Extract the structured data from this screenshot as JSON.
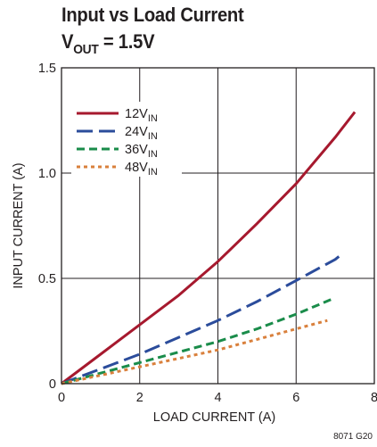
{
  "chart_data": {
    "type": "line",
    "title": {
      "main": "Input vs Load Current",
      "line2_prefix": "V",
      "line2_sub": "OUT",
      "line2_suffix": " = 1.5V"
    },
    "xlabel": "LOAD CURRENT (A)",
    "ylabel": "INPUT CURRENT (A)",
    "xlim": [
      0,
      8
    ],
    "ylim": [
      0,
      1.5
    ],
    "x_ticks": [
      "0",
      "2",
      "4",
      "6",
      "8"
    ],
    "y_ticks": [
      "0",
      "0.5",
      "1.0",
      "1.5"
    ],
    "grid": true,
    "legend_position": "top-left",
    "series": [
      {
        "name_main": "12V",
        "name_sub": "IN",
        "color": "#a6192e",
        "style": "solid",
        "x": [
          0,
          1,
          2,
          3,
          4,
          5,
          6,
          7,
          7.5
        ],
        "y": [
          0,
          0.14,
          0.28,
          0.42,
          0.58,
          0.76,
          0.95,
          1.17,
          1.29
        ]
      },
      {
        "name_main": "24V",
        "name_sub": "IN",
        "color": "#2b4c9b",
        "style": "long-dash",
        "x": [
          0,
          1,
          2,
          3,
          4,
          5,
          6,
          7,
          7.2
        ],
        "y": [
          0,
          0.07,
          0.14,
          0.22,
          0.3,
          0.39,
          0.49,
          0.59,
          0.62
        ]
      },
      {
        "name_main": "36V",
        "name_sub": "IN",
        "color": "#1a8c4a",
        "style": "dash",
        "x": [
          0,
          1,
          2,
          3,
          4,
          5,
          6,
          6.9
        ],
        "y": [
          0,
          0.05,
          0.1,
          0.15,
          0.2,
          0.26,
          0.33,
          0.4
        ]
      },
      {
        "name_main": "48V",
        "name_sub": "IN",
        "color": "#d9803c",
        "style": "dot",
        "x": [
          0,
          1,
          2,
          3,
          4,
          5,
          6,
          6.8
        ],
        "y": [
          0,
          0.04,
          0.08,
          0.12,
          0.16,
          0.21,
          0.26,
          0.3
        ]
      }
    ]
  },
  "figure_code": "8071 G20"
}
